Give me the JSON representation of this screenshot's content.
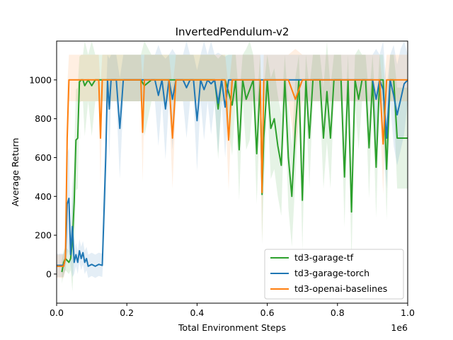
{
  "chart_data": {
    "type": "line",
    "title": "InvertedPendulum-v2",
    "xlabel": "Total Environment Steps",
    "ylabel": "Average Return",
    "x_multiplier_label": "1e6",
    "xlim": [
      0,
      1.0
    ],
    "ylim": [
      -150,
      1200
    ],
    "xticks": [
      0.0,
      0.2,
      0.4,
      0.6,
      0.8,
      1.0
    ],
    "xtick_labels": [
      "0.0",
      "0.2",
      "0.4",
      "0.6",
      "0.8",
      "1.0"
    ],
    "yticks": [
      0,
      200,
      400,
      600,
      800,
      1000
    ],
    "ytick_labels": [
      "0",
      "200",
      "400",
      "600",
      "800",
      "1000"
    ],
    "grid": false,
    "legend_position": "lower-right",
    "series": [
      {
        "name": "td3-garage-tf",
        "color": "#2ca02c",
        "x": [
          0.015,
          0.02,
          0.025,
          0.03,
          0.035,
          0.04,
          0.045,
          0.05,
          0.055,
          0.06,
          0.065,
          0.07,
          0.075,
          0.08,
          0.09,
          0.1,
          0.11,
          0.12,
          0.13,
          0.14,
          0.15,
          0.16,
          0.17,
          0.18,
          0.2,
          0.22,
          0.24,
          0.25,
          0.27,
          0.28,
          0.3,
          0.31,
          0.32,
          0.34,
          0.35,
          0.37,
          0.38,
          0.4,
          0.41,
          0.42,
          0.44,
          0.45,
          0.46,
          0.47,
          0.48,
          0.5,
          0.51,
          0.52,
          0.53,
          0.54,
          0.55,
          0.56,
          0.57,
          0.58,
          0.585,
          0.59,
          0.6,
          0.61,
          0.62,
          0.63,
          0.64,
          0.65,
          0.66,
          0.67,
          0.68,
          0.69,
          0.7,
          0.71,
          0.72,
          0.73,
          0.74,
          0.75,
          0.76,
          0.77,
          0.78,
          0.79,
          0.8,
          0.81,
          0.82,
          0.83,
          0.84,
          0.85,
          0.86,
          0.87,
          0.88,
          0.89,
          0.9,
          0.91,
          0.92,
          0.93,
          0.94,
          0.95,
          0.96,
          0.97,
          0.98,
          0.99,
          1.0
        ],
        "y": [
          10,
          60,
          80,
          70,
          60,
          80,
          170,
          370,
          690,
          700,
          990,
          1000,
          1000,
          970,
          1000,
          970,
          1000,
          1000,
          1000,
          1000,
          1000,
          1000,
          1000,
          1000,
          1000,
          1000,
          1000,
          970,
          1000,
          1000,
          1000,
          1000,
          1000,
          1000,
          1000,
          1000,
          1000,
          1000,
          1000,
          1000,
          1000,
          1000,
          850,
          1000,
          1000,
          870,
          1000,
          640,
          1000,
          900,
          950,
          1000,
          620,
          1000,
          410,
          700,
          1000,
          750,
          800,
          660,
          560,
          1000,
          600,
          400,
          750,
          1000,
          380,
          1000,
          700,
          1000,
          1000,
          1000,
          700,
          940,
          700,
          1000,
          1000,
          1000,
          500,
          1000,
          320,
          1000,
          900,
          1000,
          1000,
          650,
          1000,
          550,
          1000,
          1000,
          540,
          1000,
          1000,
          700,
          700,
          700,
          700
        ]
      },
      {
        "name": "td3-garage-torch",
        "color": "#1f77b4",
        "x": [
          0.0,
          0.02,
          0.025,
          0.03,
          0.035,
          0.04,
          0.045,
          0.05,
          0.055,
          0.06,
          0.065,
          0.07,
          0.075,
          0.08,
          0.085,
          0.09,
          0.1,
          0.11,
          0.12,
          0.13,
          0.14,
          0.145,
          0.15,
          0.155,
          0.16,
          0.17,
          0.18,
          0.19,
          0.2,
          0.22,
          0.24,
          0.26,
          0.28,
          0.29,
          0.3,
          0.31,
          0.32,
          0.33,
          0.34,
          0.35,
          0.36,
          0.37,
          0.38,
          0.39,
          0.4,
          0.41,
          0.42,
          0.43,
          0.44,
          0.45,
          0.46,
          0.47,
          0.48,
          0.49,
          0.5,
          0.52,
          0.54,
          0.56,
          0.58,
          0.59,
          0.6,
          0.61,
          0.62,
          0.64,
          0.66,
          0.68,
          0.7,
          0.72,
          0.74,
          0.76,
          0.78,
          0.8,
          0.82,
          0.84,
          0.86,
          0.88,
          0.9,
          0.91,
          0.92,
          0.93,
          0.94,
          0.95,
          0.96,
          0.97,
          0.98,
          0.99,
          1.0
        ],
        "y": [
          45,
          45,
          80,
          360,
          390,
          100,
          245,
          60,
          100,
          60,
          120,
          80,
          110,
          60,
          80,
          40,
          50,
          40,
          50,
          45,
          600,
          1000,
          850,
          1000,
          1000,
          1000,
          750,
          1000,
          1000,
          1000,
          1000,
          1000,
          1000,
          920,
          1000,
          850,
          1000,
          900,
          1000,
          1000,
          1000,
          960,
          1000,
          1000,
          790,
          1000,
          950,
          1000,
          980,
          1000,
          880,
          1000,
          860,
          1000,
          1000,
          1000,
          1000,
          1000,
          1000,
          1000,
          1000,
          1000,
          1000,
          1000,
          1000,
          1000,
          1000,
          1000,
          1000,
          1000,
          1000,
          1000,
          1000,
          1000,
          1000,
          1000,
          1000,
          900,
          1000,
          950,
          700,
          1000,
          920,
          820,
          900,
          980,
          1000
        ]
      },
      {
        "name": "td3-openai-baselines",
        "color": "#ff7f0e",
        "x": [
          0.0,
          0.02,
          0.025,
          0.03,
          0.035,
          0.04,
          0.06,
          0.08,
          0.1,
          0.12,
          0.125,
          0.13,
          0.135,
          0.14,
          0.16,
          0.18,
          0.2,
          0.22,
          0.24,
          0.245,
          0.25,
          0.26,
          0.28,
          0.3,
          0.32,
          0.33,
          0.34,
          0.36,
          0.38,
          0.4,
          0.42,
          0.44,
          0.46,
          0.48,
          0.48,
          0.49,
          0.5,
          0.52,
          0.54,
          0.56,
          0.58,
          0.585,
          0.59,
          0.6,
          0.62,
          0.64,
          0.66,
          0.68,
          0.7,
          0.72,
          0.74,
          0.76,
          0.78,
          0.8,
          0.82,
          0.84,
          0.86,
          0.88,
          0.9,
          0.92,
          0.93,
          0.94,
          0.96,
          0.98,
          1.0
        ],
        "y": [
          40,
          40,
          80,
          700,
          1000,
          1000,
          1000,
          1000,
          1000,
          1000,
          700,
          1000,
          1000,
          1000,
          1000,
          1000,
          1000,
          1000,
          1000,
          730,
          1000,
          1000,
          1000,
          1000,
          1000,
          700,
          1000,
          1000,
          1000,
          1000,
          1000,
          1000,
          1000,
          1000,
          1000,
          690,
          1000,
          1000,
          1000,
          1000,
          1000,
          420,
          1000,
          1000,
          1000,
          1000,
          1000,
          900,
          1000,
          1000,
          1000,
          1000,
          1000,
          1000,
          1000,
          1000,
          1000,
          1000,
          1000,
          1000,
          670,
          1000,
          1000,
          1000,
          1000
        ]
      }
    ]
  }
}
